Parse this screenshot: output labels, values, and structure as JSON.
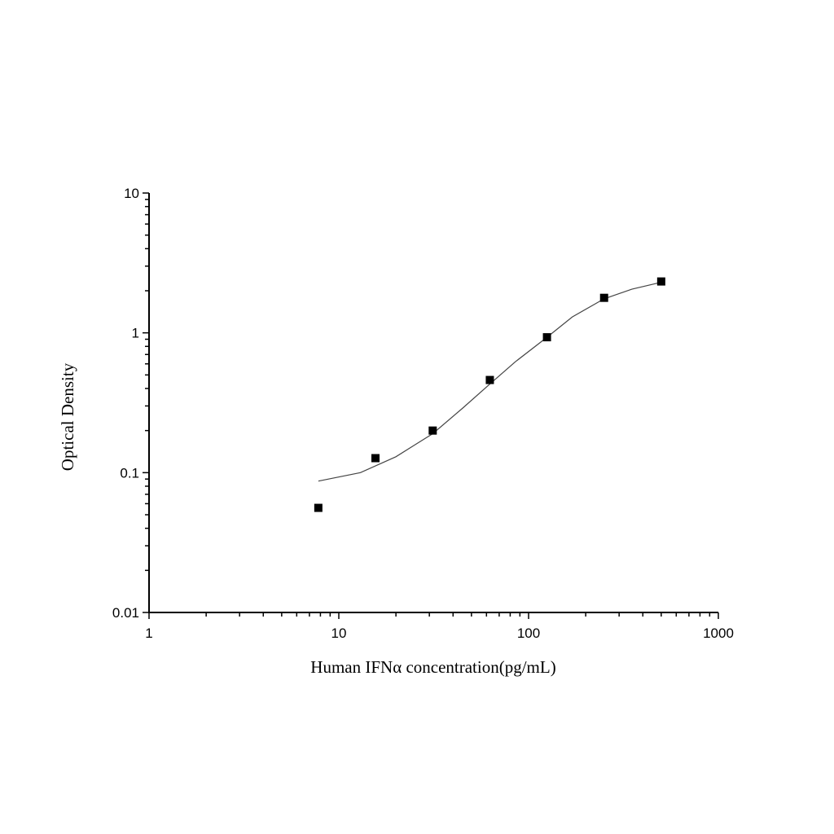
{
  "chart_data": {
    "type": "scatter",
    "title": "",
    "xlabel": "Human IFNα  concentration(pg/mL)",
    "ylabel": "Optical Density",
    "x_scale": "log",
    "y_scale": "log",
    "xlim": [
      1,
      1000
    ],
    "ylim": [
      0.01,
      10
    ],
    "x_ticks": [
      "1",
      "10",
      "100",
      "1000"
    ],
    "y_ticks": [
      "0.01",
      "0.1",
      "1",
      "10"
    ],
    "grid": false,
    "legend": "none",
    "series": [
      {
        "type": "scatter",
        "marker": "square",
        "color": "#000000",
        "x": [
          7.8,
          15.6,
          31.25,
          62.5,
          125,
          250,
          500
        ],
        "y": [
          0.056,
          0.127,
          0.2,
          0.46,
          0.93,
          1.78,
          2.33
        ]
      },
      {
        "type": "line",
        "color": "#444444",
        "x": [
          7.8,
          13,
          20,
          31.25,
          45,
          62.5,
          85,
          125,
          170,
          250,
          350,
          500
        ],
        "y": [
          0.087,
          0.1,
          0.13,
          0.19,
          0.29,
          0.43,
          0.62,
          0.93,
          1.3,
          1.75,
          2.05,
          2.3
        ]
      }
    ]
  }
}
